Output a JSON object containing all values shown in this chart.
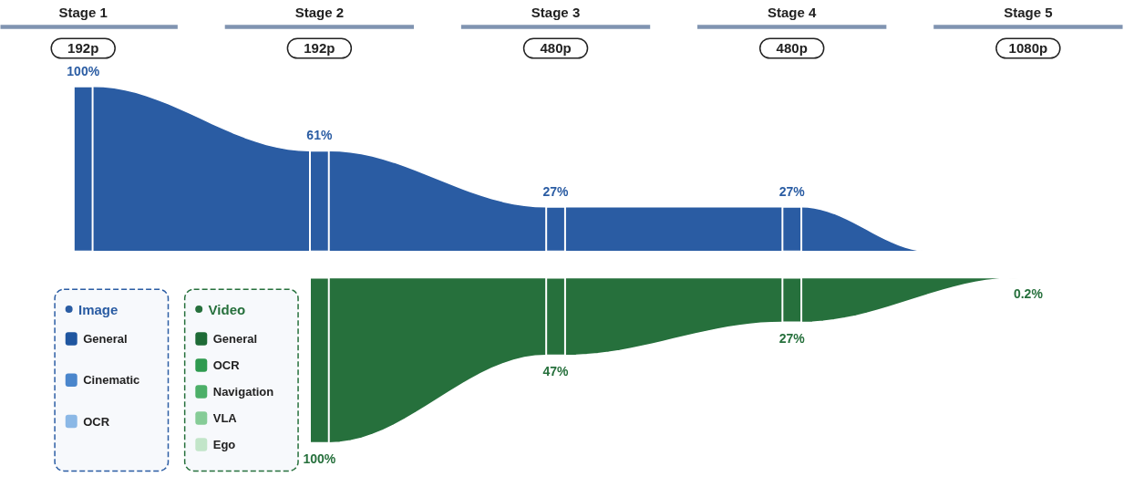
{
  "chart_data": {
    "type": "other",
    "categories": [
      "Stage 1",
      "Stage 2",
      "Stage 3",
      "Stage 4",
      "Stage 5"
    ],
    "annotations": [
      "192p",
      "192p",
      "480p",
      "480p",
      "1080p"
    ],
    "series": [
      {
        "name": "Image",
        "color": "#2a5ca3",
        "values": [
          100,
          61,
          27,
          27,
          null
        ],
        "value_labels": [
          "100%",
          "61%",
          "27%",
          "27%",
          null
        ]
      },
      {
        "name": "General",
        "color": "#1f56a0",
        "values": [
          null,
          null,
          null,
          null,
          null
        ]
      },
      {
        "name": "Cinematic",
        "color": "#4a86cc",
        "values": [
          null,
          null,
          null,
          null,
          null
        ]
      },
      {
        "name": "OCR",
        "color": "#8bb8e6",
        "values": [
          null,
          null,
          null,
          null,
          null
        ]
      },
      {
        "name": "Video",
        "color": "#26703c",
        "values": [
          null,
          100,
          47,
          27,
          0.2
        ],
        "value_labels": [
          null,
          "100%",
          "47%",
          "27%",
          "0.2%"
        ]
      },
      {
        "name": "General",
        "color": "#1e6b36",
        "values": [
          null,
          null,
          null,
          null,
          null
        ]
      },
      {
        "name": "OCR",
        "color": "#2e9a4f",
        "values": [
          null,
          null,
          null,
          null,
          null
        ]
      },
      {
        "name": "Navigation",
        "color": "#4caf68",
        "values": [
          null,
          null,
          null,
          null,
          null
        ]
      },
      {
        "name": "VLA",
        "color": "#86cc97",
        "values": [
          null,
          null,
          null,
          null,
          null
        ]
      },
      {
        "name": "Ego",
        "color": "#c2e5c9",
        "values": [
          null,
          null,
          null,
          null,
          null
        ]
      }
    ]
  }
}
